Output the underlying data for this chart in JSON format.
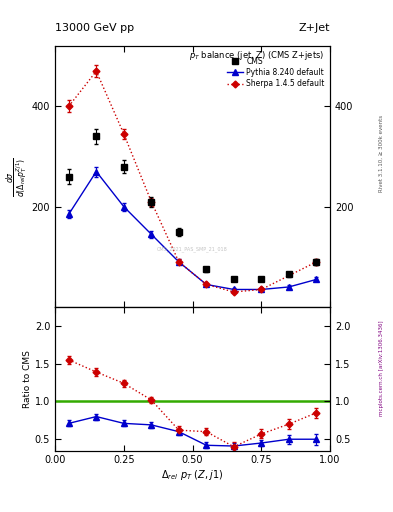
{
  "title_top": "13000 GeV pp",
  "title_right": "Z+Jet",
  "plot_title": "p$_T$ balance (jet, Z) (CMS Z+jets)",
  "rivet_label": "Rivet 3.1.10, ≥ 300k events",
  "mcplots_label": "mcplots.cern.ch [arXiv:1306.3436]",
  "watermark": "CMS_2021_PAS_SMP_21_018",
  "cms_x": [
    0.05,
    0.15,
    0.25,
    0.35,
    0.45,
    0.55,
    0.65,
    0.75,
    0.85,
    0.95
  ],
  "cms_y": [
    260,
    340,
    280,
    210,
    150,
    75,
    55,
    55,
    65,
    90
  ],
  "cms_yerr": [
    15,
    15,
    12,
    10,
    8,
    5,
    4,
    4,
    5,
    6
  ],
  "pythia_x": [
    0.05,
    0.15,
    0.25,
    0.35,
    0.45,
    0.55,
    0.65,
    0.75,
    0.85,
    0.95
  ],
  "pythia_y": [
    185,
    270,
    200,
    145,
    90,
    45,
    35,
    35,
    40,
    55
  ],
  "pythia_yerr": [
    8,
    10,
    8,
    7,
    5,
    3,
    3,
    3,
    3,
    4
  ],
  "sherpa_x": [
    0.05,
    0.15,
    0.25,
    0.35,
    0.45,
    0.55,
    0.65,
    0.75,
    0.95
  ],
  "sherpa_y": [
    400,
    470,
    345,
    210,
    90,
    45,
    30,
    35,
    90
  ],
  "sherpa_yerr": [
    12,
    12,
    10,
    8,
    5,
    3,
    3,
    3,
    6
  ],
  "ratio_pythia_x": [
    0.05,
    0.15,
    0.25,
    0.35,
    0.45,
    0.55,
    0.65,
    0.75,
    0.85,
    0.95
  ],
  "ratio_pythia_y": [
    0.71,
    0.8,
    0.71,
    0.69,
    0.6,
    0.42,
    0.41,
    0.45,
    0.5,
    0.5
  ],
  "ratio_pythia_yerr": [
    0.04,
    0.04,
    0.04,
    0.04,
    0.04,
    0.04,
    0.04,
    0.04,
    0.06,
    0.07
  ],
  "ratio_sherpa_x": [
    0.05,
    0.15,
    0.25,
    0.35,
    0.45,
    0.55,
    0.65,
    0.75,
    0.85,
    0.95
  ],
  "ratio_sherpa_y": [
    1.55,
    1.39,
    1.24,
    1.02,
    0.62,
    0.6,
    0.4,
    0.57,
    0.7,
    0.85
  ],
  "ratio_sherpa_yerr": [
    0.05,
    0.05,
    0.05,
    0.04,
    0.05,
    0.05,
    0.06,
    0.06,
    0.07,
    0.07
  ],
  "ylim_main": [
    0,
    520
  ],
  "ylim_ratio": [
    0.35,
    2.25
  ],
  "xlim": [
    0.0,
    1.0
  ],
  "cms_color": "#000000",
  "pythia_color": "#0000cc",
  "sherpa_color": "#cc0000",
  "ratio_line_color": "#33aa00",
  "yticks_main": [
    200,
    400
  ],
  "yticks_ratio": [
    0.5,
    1.0,
    1.5,
    2.0
  ],
  "xticks": [
    0.0,
    0.25,
    0.5,
    0.75,
    1.0
  ]
}
